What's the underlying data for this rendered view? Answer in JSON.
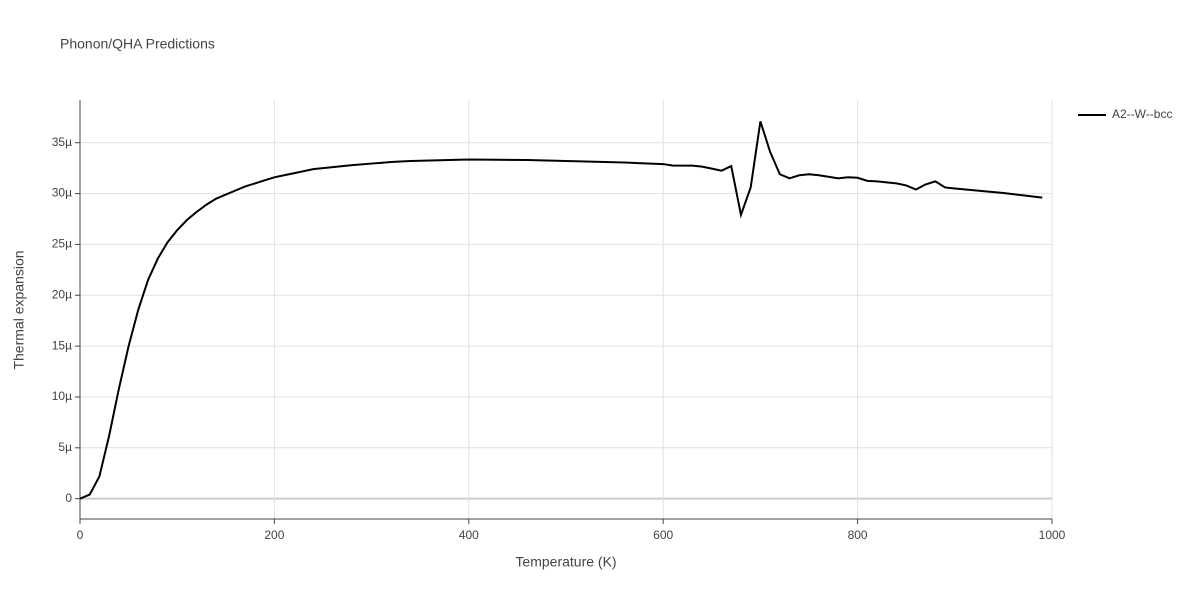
{
  "chart_data": {
    "type": "line",
    "title": "Phonon/QHA Predictions",
    "xlabel": "Temperature (K)",
    "ylabel": "Thermal expansion",
    "x": [
      0,
      10,
      20,
      30,
      40,
      50,
      60,
      70,
      80,
      90,
      100,
      110,
      120,
      130,
      140,
      150,
      160,
      170,
      180,
      190,
      200,
      210,
      220,
      230,
      240,
      260,
      280,
      300,
      320,
      340,
      360,
      380,
      400,
      460,
      500,
      560,
      600,
      610,
      630,
      640,
      650,
      660,
      670,
      680,
      690,
      700,
      710,
      720,
      730,
      740,
      750,
      760,
      770,
      780,
      790,
      800,
      810,
      820,
      830,
      840,
      850,
      860,
      870,
      880,
      890,
      900,
      950,
      990
    ],
    "series": [
      {
        "name": "A2--W--bcc",
        "color": "#000000",
        "values": [
          0,
          4e-07,
          2.2e-06,
          6.2e-06,
          1.08e-05,
          1.5e-05,
          1.86e-05,
          2.15e-05,
          2.36e-05,
          2.52e-05,
          2.64e-05,
          2.74e-05,
          2.82e-05,
          2.89e-05,
          2.95e-05,
          2.99e-05,
          3.03e-05,
          3.07e-05,
          3.1e-05,
          3.13e-05,
          3.16e-05,
          3.18e-05,
          3.2e-05,
          3.22e-05,
          3.24e-05,
          3.26e-05,
          3.28e-05,
          3.295e-05,
          3.31e-05,
          3.32e-05,
          3.325e-05,
          3.33e-05,
          3.335e-05,
          3.33e-05,
          3.32e-05,
          3.305e-05,
          3.29e-05,
          3.275e-05,
          3.275e-05,
          3.265e-05,
          3.245e-05,
          3.225e-05,
          3.27e-05,
          2.79e-05,
          3.06e-05,
          3.71e-05,
          3.41e-05,
          3.19e-05,
          3.15e-05,
          3.18e-05,
          3.19e-05,
          3.18e-05,
          3.165e-05,
          3.15e-05,
          3.16e-05,
          3.155e-05,
          3.125e-05,
          3.12e-05,
          3.11e-05,
          3.1e-05,
          3.08e-05,
          3.04e-05,
          3.09e-05,
          3.12e-05,
          3.06e-05,
          3.05e-05,
          3.005e-05,
          2.96e-05
        ]
      }
    ],
    "xlim": [
      0,
      1000
    ],
    "xticks": [
      0,
      200,
      400,
      600,
      800,
      1000
    ],
    "ylim": [
      -2e-06,
      3.92e-05
    ],
    "yticks": [
      {
        "value": 0,
        "label": "0"
      },
      {
        "value": 5e-06,
        "label": "5µ"
      },
      {
        "value": 1e-05,
        "label": "10µ"
      },
      {
        "value": 1.5e-05,
        "label": "15µ"
      },
      {
        "value": 2e-05,
        "label": "20µ"
      },
      {
        "value": 2.5e-05,
        "label": "25µ"
      },
      {
        "value": 3e-05,
        "label": "30µ"
      },
      {
        "value": 3.5e-05,
        "label": "35µ"
      }
    ],
    "grid": true,
    "legend": "top-right"
  }
}
